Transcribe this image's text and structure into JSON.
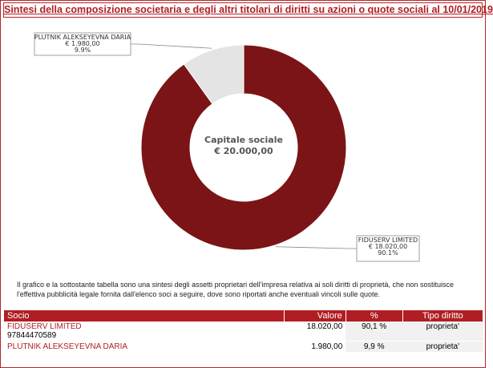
{
  "chart_data": {
    "type": "pie",
    "title": "Sintesi della composizione societaria e degli altri titolari di diritti su azioni o quote sociali al 10/01/2019",
    "center_title": "Capitale sociale",
    "center_value": "€ 20.000,00",
    "categories": [
      "FIDUSERV LIMITED",
      "PLUTNIK ALEKSEYEVNA DARIA"
    ],
    "values": [
      90.1,
      9.9
    ],
    "value_labels": [
      "90.1%",
      "9.9%"
    ],
    "amounts": [
      18020,
      1980
    ],
    "amount_labels": [
      "€ 18.020,00",
      "€ 1.980,00"
    ],
    "colors": [
      "#7b1416",
      "#e4e4e4"
    ]
  },
  "note": "Il grafico e la sottostante tabella sono una sintesi degli assetti proprietari dell'impresa relativa ai soli diritti di proprietà, che non sostituisce l'effettiva pubblicità legale fornita dall'elenco soci a seguire, dove sono riportati anche eventuali vincoli sulle quote.",
  "table": {
    "headers": [
      "Socio",
      "Valore",
      "%",
      "Tipo diritto"
    ],
    "rows": [
      {
        "name": "FIDUSERV LIMITED",
        "code": "97844470589",
        "value": "18.020,00",
        "percent": "90,1 %",
        "right": "proprieta'"
      },
      {
        "name": "PLUTNIK ALEKSEYEVNA DARIA",
        "value": "1.980,00",
        "percent": "9,9 %",
        "right": "proprieta'"
      }
    ]
  }
}
